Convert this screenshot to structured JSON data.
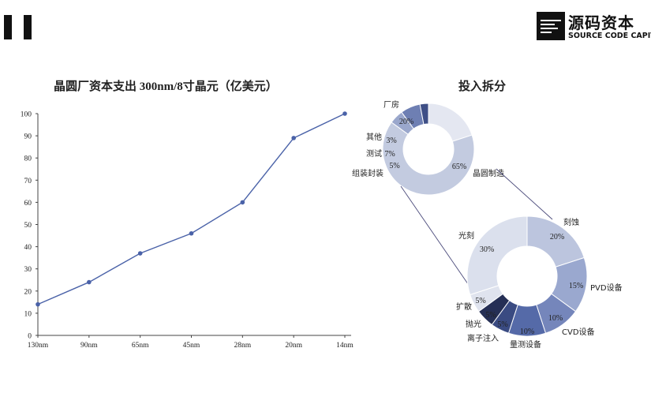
{
  "logo": {
    "name_cn": "源码资本",
    "name_en": "SOURCE CODE CAPITAL"
  },
  "chart_data": [
    {
      "type": "line",
      "title": "晶圆厂资本支出 300nm/8寸晶元（亿美元）",
      "categories": [
        "130nm",
        "90nm",
        "65nm",
        "45nm",
        "28nm",
        "20nm",
        "14nm"
      ],
      "values": [
        14,
        24,
        37,
        46,
        60,
        89,
        100
      ],
      "yticks": [
        "0",
        "10",
        "20",
        "30",
        "40",
        "50",
        "60",
        "70",
        "80",
        "90",
        "100"
      ],
      "ylim": [
        0,
        100
      ],
      "color": "#4a62a8"
    },
    {
      "type": "pie",
      "title": "投入拆分",
      "slices": [
        {
          "label": "厂房",
          "value": 20,
          "value_label": "20%",
          "color": "#e4e7f1"
        },
        {
          "label": "晶圆制造",
          "value": 65,
          "value_label": "65%",
          "color": "#c3cbe0"
        },
        {
          "label": "组装封装",
          "value": 5,
          "value_label": "5%",
          "color": "#9aa7cc"
        },
        {
          "label": "测试",
          "value": 7,
          "value_label": "7%",
          "color": "#6e7fb3"
        },
        {
          "label": "其他",
          "value": 3,
          "value_label": "3%",
          "color": "#3f4f86"
        }
      ]
    },
    {
      "type": "pie",
      "title": "",
      "slices": [
        {
          "label": "刻蚀",
          "value": 20,
          "value_label": "20%",
          "color": "#bcc5de"
        },
        {
          "label": "PVD设备",
          "value": 15,
          "value_label": "15%",
          "color": "#9aa8cf"
        },
        {
          "label": "CVD设备",
          "value": 10,
          "value_label": "10%",
          "color": "#7586bb"
        },
        {
          "label": "量测设备",
          "value": 10,
          "value_label": "10%",
          "color": "#556aa8"
        },
        {
          "label": "离子注入",
          "value": 5,
          "value_label": "5%",
          "color": "#3a4b82"
        },
        {
          "label": "抛光",
          "value": 5,
          "value_label": "5%",
          "color": "#252f55"
        },
        {
          "label": "扩散",
          "value": 5,
          "value_label": "5%",
          "color": "#dfe3ee"
        },
        {
          "label": "光刻",
          "value": 30,
          "value_label": "30%",
          "color": "#dbe0ed"
        }
      ]
    }
  ]
}
